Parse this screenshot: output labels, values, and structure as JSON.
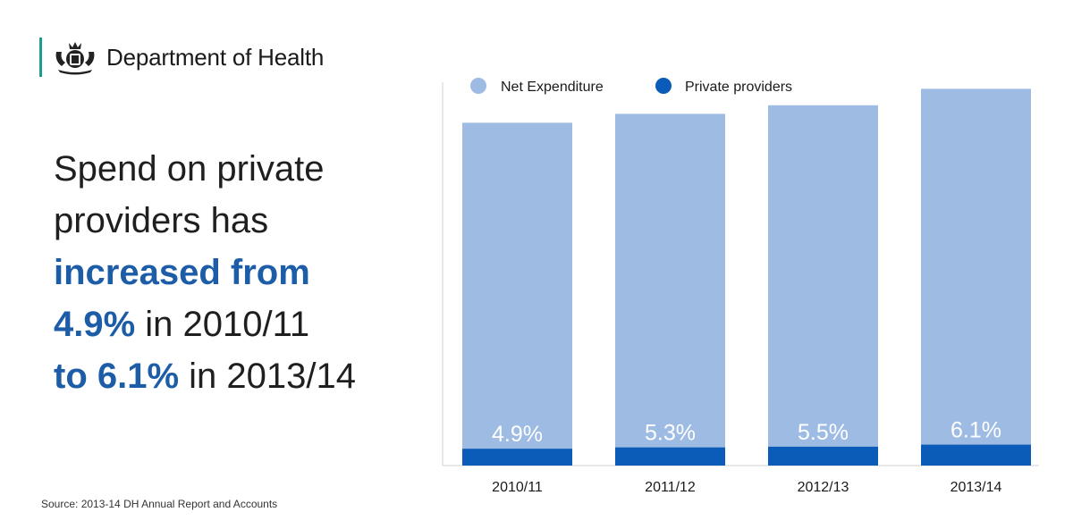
{
  "brand": {
    "name": "Department of Health",
    "accent_color": "#1b9e8f"
  },
  "headline": {
    "line1": "Spend on private",
    "line2_plain": "providers has",
    "line3_highlight": "increased from",
    "line4_highlight": "4.9%",
    "line4_plain": " in 2010/11",
    "line5_highlight": "to 6.1%",
    "line5_plain": " in 2013/14",
    "highlight_color": "#1d5da8"
  },
  "source": "Source: 2013-14 DH Annual Report and Accounts",
  "chart_data": {
    "type": "bar",
    "categories": [
      "2010/11",
      "2011/12",
      "2012/13",
      "2013/14"
    ],
    "series": [
      {
        "name": "Net Expenditure",
        "values": [
          100,
          102.6,
          105.1,
          109.9
        ],
        "color": "#9dbbe3"
      },
      {
        "name": "Private providers",
        "values": [
          4.9,
          5.3,
          5.5,
          6.1
        ],
        "color": "#0a5cb8"
      }
    ],
    "data_labels": [
      "4.9%",
      "5.3%",
      "5.5%",
      "6.1%"
    ],
    "stacked": "overlay",
    "legend": "top-left",
    "grid": false,
    "ylim": [
      0,
      110
    ]
  }
}
